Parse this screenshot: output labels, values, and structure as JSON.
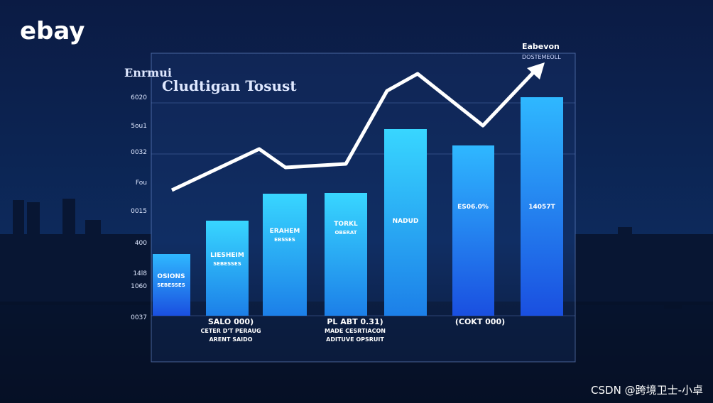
{
  "logo": "ebay",
  "heading": {
    "small": "Enrmui",
    "title": "Cludtigan Tosust"
  },
  "axis_labels": [
    "6020",
    "5ou1",
    "0032",
    "Fou",
    "0015",
    "400",
    "14l8",
    "1060",
    "0037"
  ],
  "badge": {
    "title": "Eabevon",
    "subtitle": "DOSTEMEOLL"
  },
  "bar_labels": [
    [
      "OSIONS",
      "SEBESSES"
    ],
    [
      "LIESHEIM",
      "SEBESSES"
    ],
    [
      "ERAHEM",
      "EBSSES"
    ],
    [
      "TORKL",
      "OBERAT"
    ],
    [
      "NADUD"
    ],
    [
      "ES06.0%"
    ],
    [
      "14057T"
    ]
  ],
  "footer_groups": [
    [
      "SALO 000)",
      "CETER D'T PERAUG",
      "ARENT SAIDO"
    ],
    [
      "PL ABT 0.31)",
      "MADE CESRTIACON",
      "ADITUVE OPSRUIT"
    ],
    [
      "(COKT 000)"
    ]
  ],
  "watermark": "CSDN @跨境卫士-小卓"
}
